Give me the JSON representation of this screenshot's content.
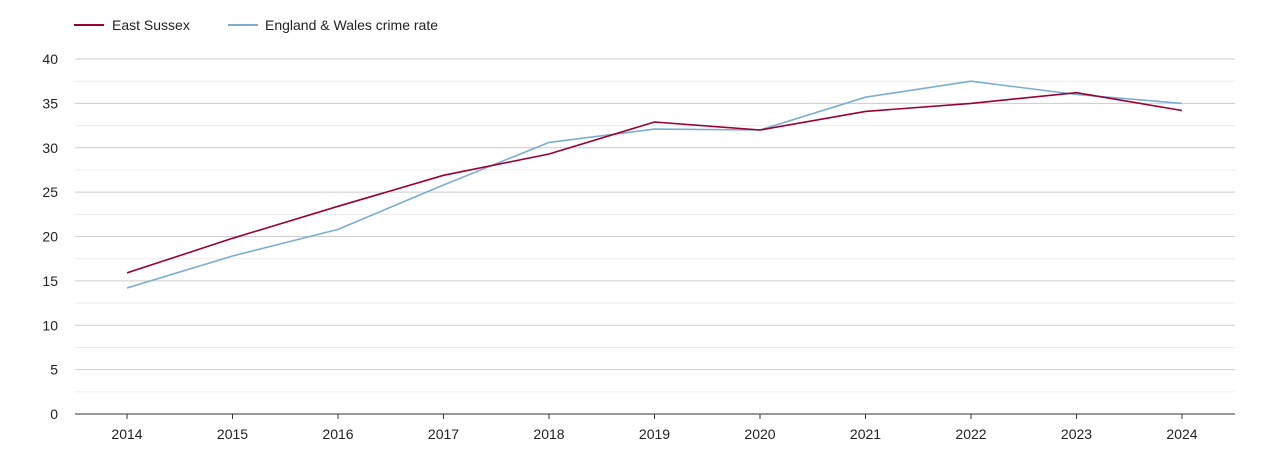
{
  "chart_data": {
    "type": "line",
    "x": [
      2014,
      2015,
      2016,
      2017,
      2018,
      2019,
      2020,
      2021,
      2022,
      2023,
      2024
    ],
    "series": [
      {
        "name": "East Sussex",
        "color": "#990033",
        "values": [
          15.9,
          19.8,
          23.4,
          26.9,
          29.3,
          32.9,
          32.0,
          34.1,
          35.0,
          36.2,
          34.2
        ]
      },
      {
        "name": "England & Wales crime rate",
        "color": "#7aaed0",
        "values": [
          14.2,
          17.8,
          20.8,
          25.8,
          30.6,
          32.1,
          32.0,
          35.7,
          37.5,
          36.0,
          35.0
        ]
      }
    ],
    "yticks": [
      0,
      5,
      10,
      15,
      20,
      25,
      30,
      35,
      40
    ],
    "ylim": [
      0,
      40
    ],
    "grid": true,
    "legend_position": "top-left"
  }
}
